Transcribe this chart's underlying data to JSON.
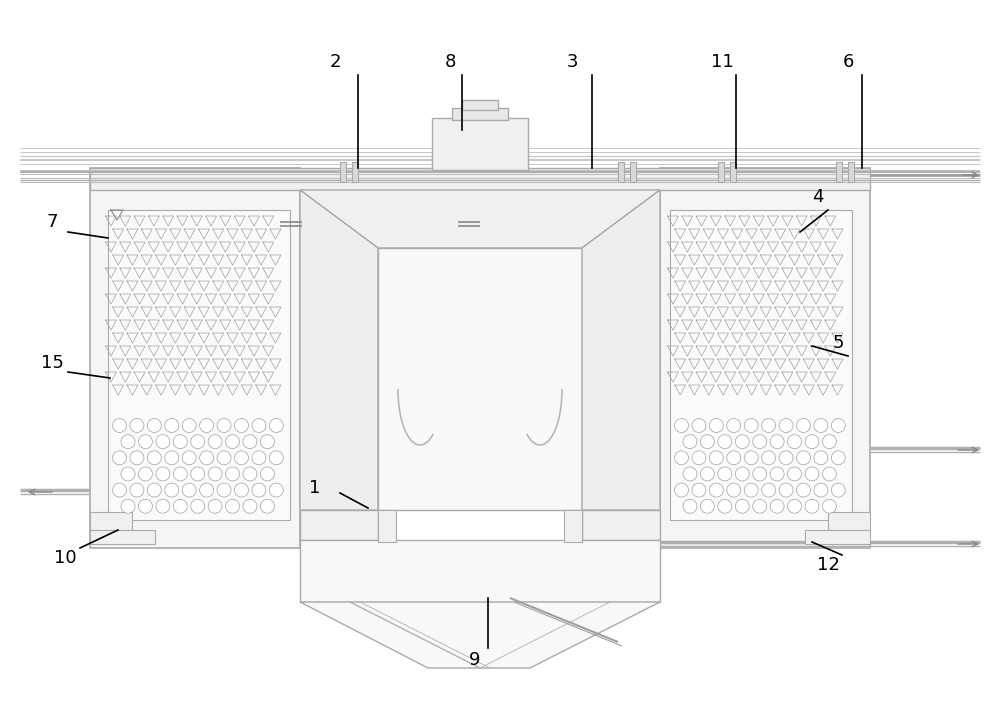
{
  "bg_color": "#ffffff",
  "lc": "#aaaaaa",
  "lc2": "#bbbbbb",
  "lc3": "#cccccc",
  "black": "#000000",
  "gray_fill": "#f5f5f5",
  "white_fill": "#ffffff",
  "labels": [
    [
      "1",
      315,
      488
    ],
    [
      "2",
      335,
      62
    ],
    [
      "3",
      572,
      62
    ],
    [
      "4",
      818,
      197
    ],
    [
      "5",
      838,
      343
    ],
    [
      "6",
      848,
      62
    ],
    [
      "7",
      52,
      222
    ],
    [
      "8",
      450,
      62
    ],
    [
      "9",
      475,
      660
    ],
    [
      "10",
      65,
      558
    ],
    [
      "11",
      722,
      62
    ],
    [
      "12",
      828,
      565
    ],
    [
      "15",
      52,
      363
    ]
  ],
  "leader_lines": [
    [
      "1",
      340,
      493,
      368,
      508
    ],
    [
      "2",
      358,
      75,
      358,
      168
    ],
    [
      "3",
      592,
      75,
      592,
      168
    ],
    [
      "4",
      828,
      210,
      800,
      232
    ],
    [
      "5",
      848,
      356,
      812,
      346
    ],
    [
      "6",
      862,
      75,
      862,
      168
    ],
    [
      "7",
      68,
      232,
      108,
      238
    ],
    [
      "8",
      462,
      75,
      462,
      130
    ],
    [
      "9",
      488,
      648,
      488,
      598
    ],
    [
      "10",
      80,
      548,
      118,
      530
    ],
    [
      "11",
      736,
      75,
      736,
      168
    ],
    [
      "12",
      842,
      555,
      812,
      542
    ],
    [
      "15",
      68,
      372,
      110,
      378
    ]
  ]
}
